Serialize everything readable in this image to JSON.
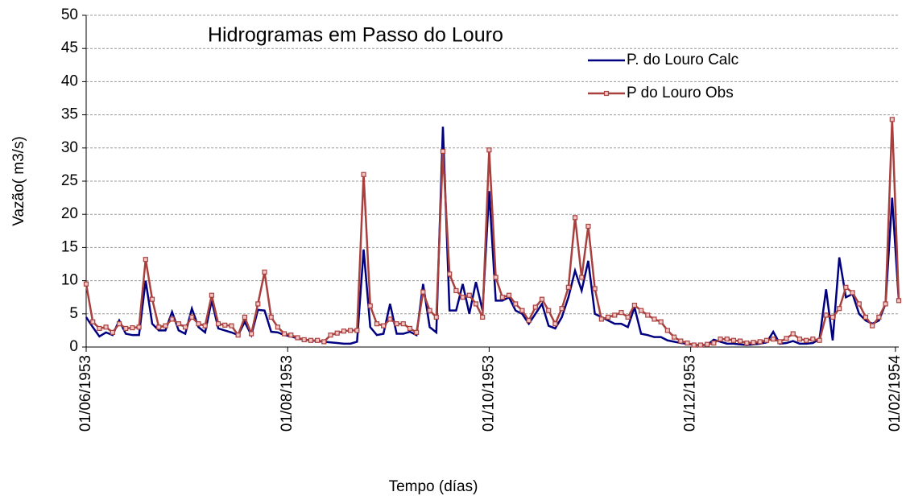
{
  "chart_data": {
    "type": "line",
    "title": "Hidrogramas em Passo do Louro",
    "x_label": "Tempo (días)",
    "y_label": "Vazão( m3/s)",
    "x": [
      "1953-06-01",
      "1953-06-03",
      "1953-06-05",
      "1953-06-07",
      "1953-06-09",
      "1953-06-11",
      "1953-06-13",
      "1953-06-15",
      "1953-06-17",
      "1953-06-19",
      "1953-06-21",
      "1953-06-23",
      "1953-06-25",
      "1953-06-27",
      "1953-06-29",
      "1953-07-01",
      "1953-07-03",
      "1953-07-05",
      "1953-07-07",
      "1953-07-09",
      "1953-07-11",
      "1953-07-13",
      "1953-07-15",
      "1953-07-17",
      "1953-07-19",
      "1953-07-21",
      "1953-07-23",
      "1953-07-25",
      "1953-07-27",
      "1953-07-29",
      "1953-07-31",
      "1953-08-02",
      "1953-08-04",
      "1953-08-06",
      "1953-08-08",
      "1953-08-10",
      "1953-08-12",
      "1953-08-14",
      "1953-08-16",
      "1953-08-18",
      "1953-08-20",
      "1953-08-22",
      "1953-08-24",
      "1953-08-26",
      "1953-08-28",
      "1953-08-30",
      "1953-09-01",
      "1953-09-03",
      "1953-09-05",
      "1953-09-07",
      "1953-09-09",
      "1953-09-11",
      "1953-09-13",
      "1953-09-15",
      "1953-09-17",
      "1953-09-19",
      "1953-09-21",
      "1953-09-23",
      "1953-09-25",
      "1953-09-27",
      "1953-09-29",
      "1953-10-01",
      "1953-10-03",
      "1953-10-05",
      "1953-10-07",
      "1953-10-09",
      "1953-10-11",
      "1953-10-13",
      "1953-10-15",
      "1953-10-17",
      "1953-10-19",
      "1953-10-21",
      "1953-10-23",
      "1953-10-25",
      "1953-10-27",
      "1953-10-29",
      "1953-10-31",
      "1953-11-02",
      "1953-11-04",
      "1953-11-06",
      "1953-11-08",
      "1953-11-10",
      "1953-11-12",
      "1953-11-14",
      "1953-11-16",
      "1953-11-18",
      "1953-11-20",
      "1953-11-22",
      "1953-11-24",
      "1953-11-26",
      "1953-11-28",
      "1953-11-30",
      "1953-12-02",
      "1953-12-04",
      "1953-12-06",
      "1953-12-08",
      "1953-12-10",
      "1953-12-12",
      "1953-12-14",
      "1953-12-16",
      "1953-12-18",
      "1953-12-20",
      "1953-12-22",
      "1953-12-24",
      "1953-12-26",
      "1953-12-28",
      "1953-12-30",
      "1954-01-01",
      "1954-01-03",
      "1954-01-05",
      "1954-01-07",
      "1954-01-09",
      "1954-01-11",
      "1954-01-13",
      "1954-01-15",
      "1954-01-17",
      "1954-01-19",
      "1954-01-21",
      "1954-01-23",
      "1954-01-25",
      "1954-01-27",
      "1954-01-29",
      "1954-01-31",
      "1954-02-02"
    ],
    "series": [
      {
        "name": "P. do Louro Calc",
        "color": "#000080",
        "markers": false,
        "values": [
          4.5,
          3.0,
          1.6,
          2.2,
          1.8,
          4.0,
          2.0,
          1.8,
          1.8,
          10.0,
          3.5,
          2.5,
          2.5,
          5.3,
          2.5,
          2.0,
          5.8,
          3.0,
          2.2,
          7.0,
          2.8,
          2.5,
          2.2,
          1.8,
          3.8,
          1.8,
          5.6,
          5.5,
          2.3,
          2.2,
          1.8,
          1.6,
          1.3,
          1.1,
          1.0,
          0.9,
          0.8,
          0.7,
          0.6,
          0.5,
          0.5,
          0.8,
          14.7,
          3.0,
          1.8,
          2.0,
          6.5,
          2.0,
          2.0,
          2.3,
          1.8,
          9.5,
          3.0,
          2.2,
          33.2,
          5.5,
          5.5,
          9.5,
          5.0,
          9.8,
          5.5,
          23.5,
          7.0,
          7.0,
          7.5,
          5.5,
          5.0,
          3.5,
          5.0,
          6.5,
          3.2,
          2.8,
          4.5,
          7.5,
          11.5,
          8.5,
          13.0,
          5.0,
          4.5,
          4.0,
          3.5,
          3.5,
          3.0,
          6.0,
          2.0,
          1.8,
          1.5,
          1.5,
          1.0,
          0.8,
          0.6,
          0.5,
          0.3,
          0.3,
          0.3,
          1.1,
          0.8,
          0.5,
          0.5,
          0.4,
          0.3,
          0.4,
          0.5,
          0.7,
          2.3,
          0.5,
          0.6,
          0.9,
          0.5,
          0.5,
          0.6,
          1.2,
          8.7,
          1.0,
          13.5,
          7.5,
          8.0,
          5.0,
          4.0,
          3.5,
          4.0,
          6.5,
          22.5,
          7.0
        ]
      },
      {
        "name": "P do Louro Obs",
        "color": "#a8403e",
        "markers": true,
        "values": [
          9.5,
          3.8,
          2.8,
          3.0,
          2.2,
          3.5,
          2.8,
          2.9,
          3.0,
          13.2,
          7.2,
          3.0,
          3.2,
          4.2,
          3.5,
          3.0,
          4.5,
          3.5,
          3.2,
          7.8,
          3.5,
          3.3,
          3.2,
          1.8,
          4.5,
          2.0,
          6.5,
          11.3,
          4.5,
          3.0,
          2.0,
          1.8,
          1.4,
          1.1,
          1.0,
          1.0,
          0.8,
          1.8,
          2.1,
          2.4,
          2.5,
          2.5,
          26.0,
          6.2,
          3.5,
          3.2,
          4.2,
          3.5,
          3.5,
          2.8,
          2.2,
          8.3,
          5.5,
          4.5,
          29.5,
          11.0,
          8.5,
          7.5,
          7.8,
          6.5,
          4.5,
          29.7,
          10.5,
          7.5,
          7.8,
          6.5,
          5.5,
          4.0,
          6.0,
          7.2,
          5.5,
          3.5,
          5.8,
          9.0,
          19.5,
          10.5,
          18.2,
          8.8,
          4.2,
          4.5,
          4.8,
          5.2,
          4.5,
          6.3,
          5.5,
          4.8,
          4.2,
          3.8,
          2.5,
          1.5,
          0.9,
          0.6,
          0.3,
          0.3,
          0.4,
          0.6,
          1.2,
          1.2,
          1.0,
          0.9,
          0.6,
          0.7,
          0.8,
          1.0,
          1.2,
          0.8,
          1.3,
          2.0,
          1.2,
          1.0,
          1.2,
          1.0,
          4.8,
          4.5,
          5.8,
          9.0,
          8.2,
          6.5,
          4.5,
          3.2,
          4.5,
          6.5,
          34.3,
          7.0
        ]
      }
    ],
    "xlim": [
      "1953-06-01",
      "1954-02-02"
    ],
    "xticks": [
      {
        "value": "1953-06-01",
        "label": "01/06/1953"
      },
      {
        "value": "1953-08-01",
        "label": "01/08/1953"
      },
      {
        "value": "1953-10-01",
        "label": "01/10/1953"
      },
      {
        "value": "1953-12-01",
        "label": "01/12/1953"
      },
      {
        "value": "1954-02-01",
        "label": "01/02/1954"
      }
    ],
    "ylim": [
      0,
      50
    ],
    "yticks": [
      0,
      5,
      10,
      15,
      20,
      25,
      30,
      35,
      40,
      45,
      50
    ],
    "grid": true,
    "legend": "upper right"
  }
}
